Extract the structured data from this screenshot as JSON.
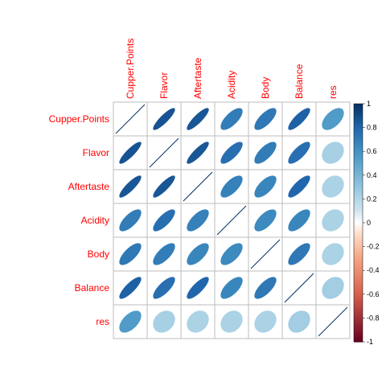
{
  "chart_data": {
    "type": "heatmap",
    "title": "",
    "variables": [
      "Cupper.Points",
      "Flavor",
      "Aftertaste",
      "Acidity",
      "Body",
      "Balance",
      "res"
    ],
    "matrix": [
      [
        1.0,
        0.87,
        0.86,
        0.7,
        0.72,
        0.82,
        0.55
      ],
      [
        0.87,
        1.0,
        0.86,
        0.76,
        0.7,
        0.76,
        0.23
      ],
      [
        0.86,
        0.86,
        1.0,
        0.68,
        0.66,
        0.8,
        0.22
      ],
      [
        0.7,
        0.76,
        0.68,
        1.0,
        0.64,
        0.66,
        0.22
      ],
      [
        0.72,
        0.7,
        0.66,
        0.64,
        1.0,
        0.72,
        0.22
      ],
      [
        0.82,
        0.76,
        0.8,
        0.66,
        0.72,
        1.0,
        0.25
      ],
      [
        0.55,
        0.23,
        0.22,
        0.22,
        0.22,
        0.25,
        1.0
      ]
    ],
    "color_scale": {
      "range": [
        -1,
        1
      ],
      "ticks": [
        "-1",
        "-0.8",
        "-0.6",
        "-0.4",
        "-0.2",
        "0",
        "0.2",
        "0.4",
        "0.6",
        "0.8",
        "1"
      ],
      "stops": [
        {
          "value": -1.0,
          "color": "#67001f"
        },
        {
          "value": -0.6,
          "color": "#d6604d"
        },
        {
          "value": -0.3,
          "color": "#f4a582"
        },
        {
          "value": -0.1,
          "color": "#fddbc7"
        },
        {
          "value": 0.0,
          "color": "#ffffff"
        },
        {
          "value": 0.1,
          "color": "#d1e5f0"
        },
        {
          "value": 0.3,
          "color": "#92c5de"
        },
        {
          "value": 0.6,
          "color": "#4393c3"
        },
        {
          "value": 0.8,
          "color": "#2166ac"
        },
        {
          "value": 1.0,
          "color": "#053061"
        }
      ]
    },
    "method": "ellipse",
    "label_color": "#ff0000",
    "grid_color": "#bebebe",
    "legend_position": "right"
  }
}
